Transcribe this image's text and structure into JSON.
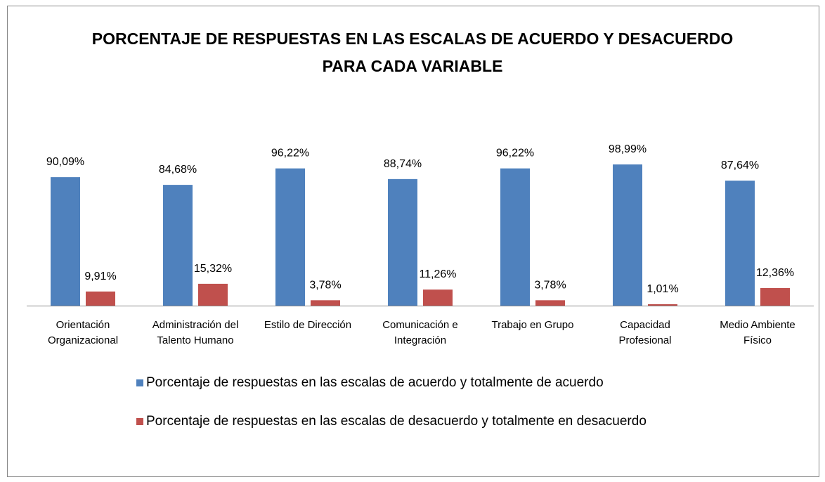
{
  "chart_data": {
    "type": "bar",
    "title": "PORCENTAJE DE RESPUESTAS EN LAS ESCALAS DE ACUERDO Y DESACUERDO PARA CADA VARIABLE",
    "categories": [
      "Orientación Organizacional",
      "Administración del Talento Humano",
      "Estilo de Dirección",
      "Comunicación e Integración",
      "Trabajo en Grupo",
      "Capacidad Profesional",
      "Medio Ambiente Físico"
    ],
    "series": [
      {
        "name": "Porcentaje de respuestas en las escalas de acuerdo y totalmente de acuerdo",
        "color": "#4f81bd",
        "values": [
          90.09,
          84.68,
          96.22,
          88.74,
          96.22,
          98.99,
          87.64
        ],
        "value_labels": [
          "90,09%",
          "84,68%",
          "96,22%",
          "88,74%",
          "96,22%",
          "98,99%",
          "87,64%"
        ]
      },
      {
        "name": "Porcentaje de respuestas en las escalas de desacuerdo y totalmente en desacuerdo",
        "color": "#c0504d",
        "values": [
          9.91,
          15.32,
          3.78,
          11.26,
          3.78,
          1.01,
          12.36
        ],
        "value_labels": [
          "9,91%",
          "15,32%",
          "3,78%",
          "11,26%",
          "3,78%",
          "1,01%",
          "12,36%"
        ]
      }
    ],
    "legend": "bottom"
  }
}
